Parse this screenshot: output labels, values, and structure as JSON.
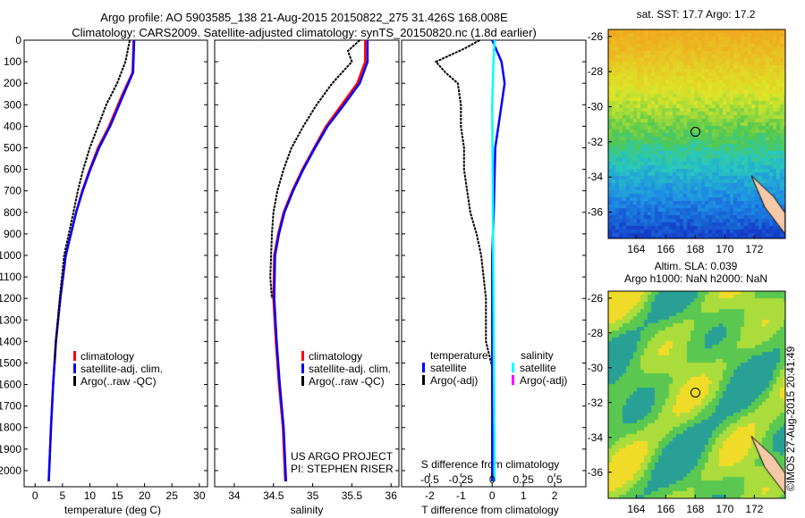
{
  "title": {
    "line1": "Argo profile: AO 5903585_138 21-Aug-2015 20150822_275 31.426S 168.008E",
    "line2": "Climatology: CARS2009. Satellite-adjusted climatology: synTS_20150820.nc (1.8d earlier)"
  },
  "colors": {
    "climatology": "#ff0000",
    "satellite": "#0000ff",
    "argo": "#000000",
    "sal_satellite": "#00ffff",
    "sal_argo": "#ff00ff"
  },
  "credit": "©IMOS 27-Aug-2015 20:41:49",
  "chart_data": [
    {
      "type": "line",
      "name": "temperature-profile",
      "xlabel": "temperature (deg C)",
      "xlim": [
        -2,
        31.5
      ],
      "ylim": [
        2075,
        0
      ],
      "xticks": [
        0,
        5,
        10,
        15,
        20,
        25,
        30
      ],
      "yticks": [
        0,
        100,
        200,
        300,
        400,
        500,
        600,
        700,
        800,
        900,
        1000,
        1100,
        1200,
        1300,
        1400,
        1500,
        1600,
        1700,
        1800,
        1900,
        2000
      ],
      "legend": [
        "climatology",
        "satellite-adj. clim.",
        "Argo(..raw -QC)"
      ],
      "series": [
        {
          "name": "climatology",
          "color": "#ff0000",
          "points": [
            [
              0,
              18
            ],
            [
              150,
              17.8
            ],
            [
              250,
              16
            ],
            [
              400,
              13.5
            ],
            [
              500,
              11.5
            ],
            [
              600,
              10
            ],
            [
              700,
              8.6
            ],
            [
              800,
              7.5
            ],
            [
              1000,
              5.6
            ],
            [
              1200,
              4.6
            ],
            [
              1400,
              3.8
            ],
            [
              1600,
              3.3
            ],
            [
              1800,
              2.9
            ],
            [
              2050,
              2.5
            ]
          ]
        },
        {
          "name": "satellite-adj. clim.",
          "color": "#0000ff",
          "points": [
            [
              0,
              18.1
            ],
            [
              150,
              17.9
            ],
            [
              250,
              16.2
            ],
            [
              400,
              13.7
            ],
            [
              500,
              11.7
            ],
            [
              600,
              10.1
            ],
            [
              700,
              8.7
            ],
            [
              800,
              7.5
            ],
            [
              1000,
              5.6
            ],
            [
              1200,
              4.6
            ],
            [
              1400,
              3.8
            ],
            [
              1600,
              3.3
            ],
            [
              1800,
              2.9
            ],
            [
              2050,
              2.5
            ]
          ]
        },
        {
          "name": "Argo(..raw -QC)",
          "color": "#000000",
          "points": [
            [
              0,
              17.3
            ],
            [
              100,
              16.5
            ],
            [
              200,
              15
            ],
            [
              300,
              13
            ],
            [
              400,
              11.5
            ],
            [
              500,
              10
            ],
            [
              600,
              8.8
            ],
            [
              700,
              7.8
            ],
            [
              800,
              7
            ],
            [
              1000,
              5.3
            ],
            [
              1200,
              4.5
            ],
            [
              1400,
              3.8
            ],
            [
              1500,
              3.6
            ]
          ]
        }
      ]
    },
    {
      "type": "line",
      "name": "salinity-profile",
      "xlabel": "salinity",
      "xlim": [
        33.75,
        36.1
      ],
      "ylim": [
        2075,
        0
      ],
      "xticks": [
        34,
        34.5,
        35,
        35.5,
        36
      ],
      "xticklabels": [
        "34",
        "34.5",
        "35",
        "35.5",
        "36"
      ],
      "legend": [
        "climatology",
        "satellite-adj. clim.",
        "Argo(..raw -QC)"
      ],
      "annotation": [
        "US ARGO PROJECT",
        "PI: STEPHEN RISER"
      ],
      "series": [
        {
          "name": "climatology",
          "color": "#ff0000",
          "points": [
            [
              0,
              35.67
            ],
            [
              100,
              35.67
            ],
            [
              200,
              35.57
            ],
            [
              300,
              35.37
            ],
            [
              400,
              35.17
            ],
            [
              500,
              35.02
            ],
            [
              600,
              34.87
            ],
            [
              700,
              34.74
            ],
            [
              800,
              34.63
            ],
            [
              900,
              34.56
            ],
            [
              1000,
              34.51
            ],
            [
              1200,
              34.5
            ],
            [
              1400,
              34.53
            ],
            [
              1600,
              34.57
            ],
            [
              1800,
              34.62
            ],
            [
              2050,
              34.65
            ]
          ]
        },
        {
          "name": "satellite-adj. clim.",
          "color": "#0000ff",
          "points": [
            [
              0,
              35.7
            ],
            [
              100,
              35.7
            ],
            [
              200,
              35.6
            ],
            [
              300,
              35.4
            ],
            [
              400,
              35.19
            ],
            [
              500,
              35.03
            ],
            [
              600,
              34.88
            ],
            [
              700,
              34.75
            ],
            [
              800,
              34.64
            ],
            [
              900,
              34.57
            ],
            [
              1000,
              34.52
            ],
            [
              1200,
              34.51
            ],
            [
              1400,
              34.54
            ],
            [
              1600,
              34.58
            ],
            [
              1800,
              34.63
            ],
            [
              2050,
              34.66
            ]
          ]
        },
        {
          "name": "Argo(..raw -QC)",
          "color": "#000000",
          "points": [
            [
              0,
              35.6
            ],
            [
              50,
              35.45
            ],
            [
              100,
              35.5
            ],
            [
              200,
              35.25
            ],
            [
              300,
              35.05
            ],
            [
              400,
              34.88
            ],
            [
              500,
              34.73
            ],
            [
              600,
              34.63
            ],
            [
              700,
              34.55
            ],
            [
              800,
              34.5
            ],
            [
              900,
              34.48
            ],
            [
              1000,
              34.47
            ],
            [
              1100,
              34.46
            ],
            [
              1200,
              34.48
            ]
          ]
        }
      ]
    },
    {
      "type": "line",
      "name": "difference-profile",
      "xlabel": "T difference from climatology",
      "x2label": "S difference from climatology",
      "xlim": [
        -2.9,
        3.0
      ],
      "ylim": [
        2075,
        0
      ],
      "xticks": [
        -2,
        -1,
        0,
        1,
        2
      ],
      "x2ticks": [
        -0.5,
        -0.25,
        0,
        0.25,
        0.5
      ],
      "x2ticklabels": [
        "-0.5",
        "-0.25",
        "0",
        "0.25",
        "0.5"
      ],
      "legend_t_title": "temperature",
      "legend_s_title": "salinity",
      "legend": [
        "satellite",
        "Argo(-adj)",
        "satellite",
        "Argo(-adj)"
      ],
      "series": [
        {
          "name": "T Argo(-adj)",
          "color": "#000000",
          "points": [
            [
              0,
              -0.4
            ],
            [
              40,
              -0.9
            ],
            [
              100,
              -1.8
            ],
            [
              150,
              -1.5
            ],
            [
              200,
              -1.1
            ],
            [
              300,
              -1.0
            ],
            [
              400,
              -1.0
            ],
            [
              500,
              -0.9
            ],
            [
              600,
              -0.9
            ],
            [
              700,
              -0.8
            ],
            [
              800,
              -0.7
            ],
            [
              900,
              -0.5
            ],
            [
              1000,
              -0.35
            ],
            [
              1200,
              -0.2
            ],
            [
              1400,
              -0.2
            ],
            [
              1520,
              0
            ]
          ]
        },
        {
          "name": "T satellite",
          "color": "#0000ff",
          "points": [
            [
              0,
              0
            ],
            [
              100,
              0.3
            ],
            [
              200,
              0.4
            ],
            [
              300,
              0.3
            ],
            [
              500,
              0.1
            ],
            [
              800,
              0.05
            ],
            [
              1000,
              0
            ],
            [
              2050,
              0
            ]
          ]
        },
        {
          "name": "S satellite",
          "color": "#00ffff",
          "points": [
            [
              0,
              0.02
            ],
            [
              100,
              0.01
            ],
            [
              300,
              0.0
            ],
            [
              2050,
              0.02
            ]
          ]
        }
      ]
    },
    {
      "type": "heatmap",
      "name": "sst-map",
      "title": "sat. SST: 17.7 Argo: 17.2",
      "xticks": [
        164,
        166,
        168,
        170,
        172
      ],
      "yticks": [
        -26,
        -28,
        -30,
        -32,
        -34,
        -36
      ],
      "xlim": [
        162.1,
        174.1
      ],
      "ylim": [
        -37.5,
        -25.6
      ],
      "argo_position": [
        168.008,
        -31.426
      ]
    },
    {
      "type": "heatmap",
      "name": "sla-map",
      "title": "Altim. SLA: 0.039",
      "subtitle": "Argo h1000: NaN h2000: NaN",
      "xticks": [
        164,
        166,
        168,
        170,
        172
      ],
      "yticks": [
        -26,
        -28,
        -30,
        -32,
        -34,
        -36
      ],
      "xlim": [
        162.1,
        174.1
      ],
      "ylim": [
        -37.5,
        -25.6
      ],
      "argo_position": [
        168.008,
        -31.426
      ]
    }
  ]
}
